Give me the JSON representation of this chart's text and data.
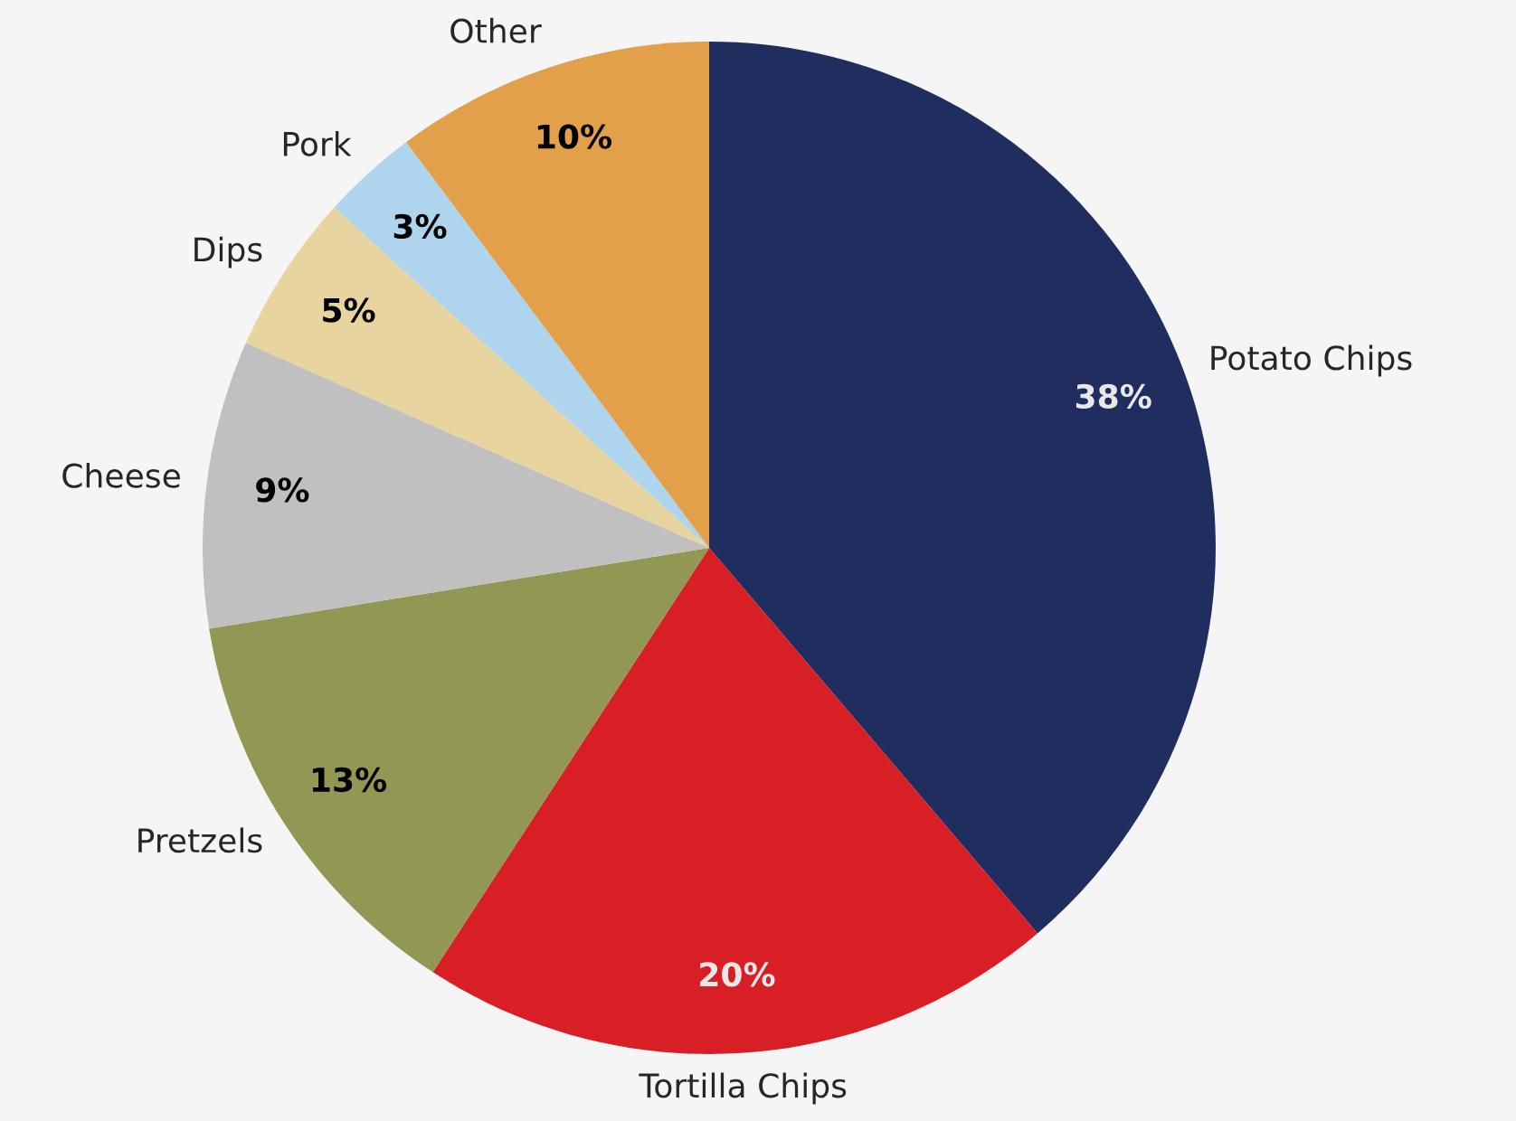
{
  "chart_data": {
    "type": "pie",
    "categories": [
      "Potato Chips",
      "Tortilla Chips",
      "Pretzels",
      "Cheese",
      "Dips",
      "Pork",
      "Other"
    ],
    "values": [
      38,
      20,
      13,
      9,
      5,
      3,
      10
    ],
    "colors": [
      "#1f2d5f",
      "#d91f26",
      "#939754",
      "#c0c0c0",
      "#e8d49f",
      "#aed4ee",
      "#e3a04b"
    ],
    "value_labels": [
      "38%",
      "20%",
      "13%",
      "9%",
      "5%",
      "3%",
      "10%"
    ]
  }
}
